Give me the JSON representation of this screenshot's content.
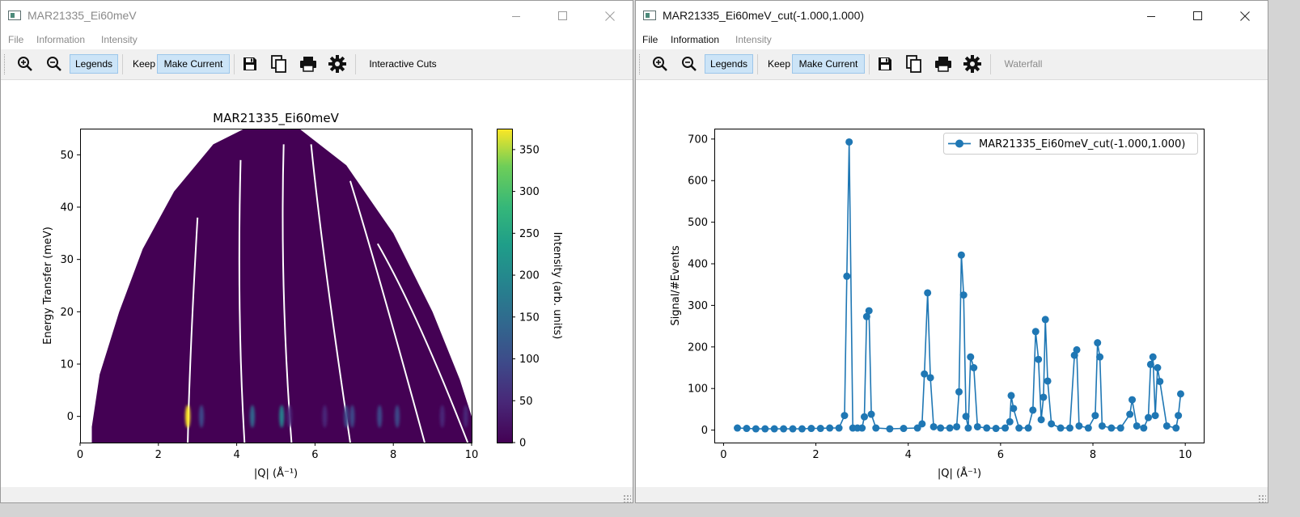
{
  "left_window": {
    "title": "MAR21335_Ei60meV",
    "menus": [
      "File",
      "Information",
      "Intensity"
    ],
    "toolbar": {
      "legends_label": "Legends",
      "keep_label": "Keep",
      "make_current_label": "Make Current",
      "interactive_cuts_label": "Interactive Cuts"
    }
  },
  "right_window": {
    "title": "MAR21335_Ei60meV_cut(-1.000,1.000)",
    "menus": [
      "File",
      "Information",
      "Intensity"
    ],
    "toolbar": {
      "legends_label": "Legends",
      "keep_label": "Keep",
      "make_current_label": "Make Current",
      "waterfall_label": "Waterfall"
    }
  },
  "icons": [
    "zoom-in-icon",
    "zoom-out-icon",
    "save-icon",
    "copy-icon",
    "print-icon",
    "gear-icon",
    "minimize-icon",
    "maximize-icon",
    "close-icon"
  ],
  "colors": {
    "line": "#1f77b4",
    "toggle_bg": "#cce4f7"
  },
  "chart_data": [
    {
      "type": "heatmap",
      "title": "MAR21335_Ei60meV",
      "xlabel": "|Q| (Å⁻¹)",
      "ylabel": "Energy Transfer (meV)",
      "colorbar_label": "Intensity (arb. units)",
      "xlim": [
        0,
        10
      ],
      "ylim": [
        -5,
        55
      ],
      "xticks": [
        "0",
        "2",
        "4",
        "6",
        "8",
        "10"
      ],
      "yticks": [
        "0",
        "10",
        "20",
        "30",
        "40",
        "50"
      ],
      "colorbar_range": [
        0,
        375
      ],
      "colorbar_ticks": [
        "0",
        "50",
        "100",
        "150",
        "200",
        "250",
        "300",
        "350"
      ],
      "colormap": "viridis",
      "hotspots": [
        {
          "q": 2.75,
          "e": 0,
          "intensity": 375
        },
        {
          "q": 3.1,
          "e": 0,
          "intensity": 140
        },
        {
          "q": 4.4,
          "e": 0,
          "intensity": 150
        },
        {
          "q": 5.15,
          "e": 0,
          "intensity": 190
        },
        {
          "q": 5.35,
          "e": 0,
          "intensity": 90
        },
        {
          "q": 6.25,
          "e": 0,
          "intensity": 60
        },
        {
          "q": 6.8,
          "e": 0,
          "intensity": 120
        },
        {
          "q": 6.95,
          "e": 0,
          "intensity": 100
        },
        {
          "q": 7.65,
          "e": 0,
          "intensity": 110
        },
        {
          "q": 8.1,
          "e": 0,
          "intensity": 100
        },
        {
          "q": 9.25,
          "e": 0,
          "intensity": 90
        },
        {
          "q": 9.85,
          "e": 0,
          "intensity": 70
        }
      ]
    },
    {
      "type": "line",
      "xlabel": "|Q| (Å⁻¹)",
      "ylabel": "Signal/#Events",
      "xlim": [
        -0.2,
        10.4
      ],
      "ylim": [
        -30,
        725
      ],
      "xticks": [
        "0",
        "2",
        "4",
        "6",
        "8",
        "10"
      ],
      "yticks": [
        "0",
        "100",
        "200",
        "300",
        "400",
        "500",
        "600",
        "700"
      ],
      "legend_position": "top-right",
      "series": [
        {
          "name": "MAR21335_Ei60meV_cut(-1.000,1.000)",
          "x": [
            0.3,
            0.5,
            0.7,
            0.9,
            1.1,
            1.3,
            1.5,
            1.7,
            1.9,
            2.1,
            2.3,
            2.5,
            2.62,
            2.67,
            2.72,
            2.8,
            2.9,
            3.0,
            3.05,
            3.1,
            3.15,
            3.2,
            3.3,
            3.6,
            3.9,
            4.2,
            4.3,
            4.35,
            4.42,
            4.48,
            4.55,
            4.7,
            4.9,
            5.05,
            5.1,
            5.15,
            5.2,
            5.25,
            5.3,
            5.35,
            5.42,
            5.5,
            5.7,
            5.9,
            6.1,
            6.2,
            6.23,
            6.28,
            6.4,
            6.6,
            6.7,
            6.76,
            6.82,
            6.88,
            6.93,
            6.97,
            7.02,
            7.1,
            7.3,
            7.5,
            7.6,
            7.65,
            7.7,
            7.9,
            8.05,
            8.1,
            8.15,
            8.2,
            8.4,
            8.6,
            8.8,
            8.85,
            8.95,
            9.1,
            9.2,
            9.25,
            9.3,
            9.35,
            9.4,
            9.45,
            9.6,
            9.8,
            9.85,
            9.9
          ],
          "y": [
            5,
            4,
            3,
            3,
            3,
            3,
            3,
            3,
            4,
            4,
            5,
            5,
            35,
            370,
            693,
            5,
            5,
            5,
            32,
            273,
            287,
            38,
            5,
            3,
            4,
            5,
            15,
            135,
            330,
            126,
            8,
            5,
            5,
            8,
            92,
            421,
            325,
            33,
            5,
            176,
            150,
            8,
            5,
            4,
            5,
            20,
            83,
            52,
            5,
            5,
            48,
            237,
            170,
            25,
            79,
            266,
            118,
            15,
            5,
            5,
            180,
            193,
            10,
            5,
            35,
            210,
            176,
            10,
            5,
            5,
            38,
            73,
            10,
            5,
            30,
            158,
            176,
            35,
            150,
            117,
            10,
            5,
            35,
            87
          ]
        }
      ]
    }
  ]
}
